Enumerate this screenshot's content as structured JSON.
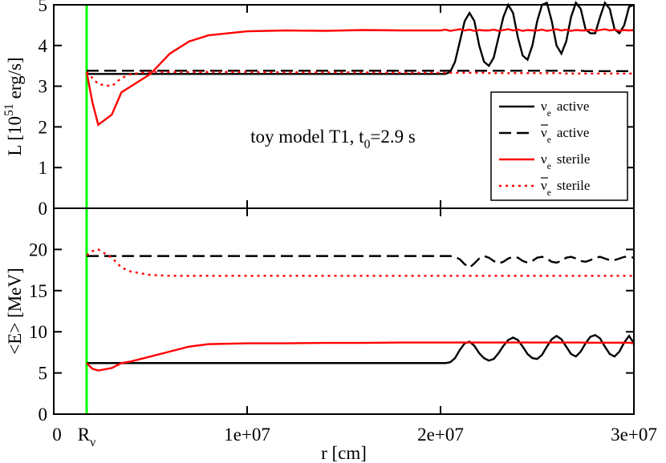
{
  "chart_data": [
    {
      "type": "line",
      "ylabel": "L [10",
      "ylabel_sup": "51",
      "ylabel_tail": "erg/s]",
      "annotation": {
        "text": "toy model T1, t",
        "sub": "0",
        "tail": "=2.9 s"
      },
      "x": [
        1700000,
        2000000,
        2300000,
        3000000,
        3500000,
        4000000,
        5000000,
        6000000,
        7000000,
        8000000,
        10000000,
        12000000,
        14000000,
        16000000,
        18000000,
        20000000,
        20250000,
        20500000,
        20750000,
        21000000,
        21250000,
        21500000,
        21750000,
        22000000,
        22250000,
        22500000,
        22750000,
        23000000,
        23250000,
        23500000,
        23750000,
        24000000,
        24250000,
        24500000,
        24750000,
        25000000,
        25250000,
        25500000,
        25750000,
        26000000,
        26250000,
        26500000,
        26750000,
        27000000,
        27250000,
        27500000,
        27750000,
        28000000,
        28250000,
        28500000,
        28750000,
        29000000,
        29250000,
        29500000,
        29750000,
        30000000
      ],
      "xlim": [
        0,
        30000000
      ],
      "xticks": [
        0,
        10000000,
        20000000,
        30000000
      ],
      "ylim": [
        0,
        5
      ],
      "yticks": [
        0,
        1,
        2,
        3,
        4,
        5
      ],
      "legend": "lower right",
      "marker_line": {
        "x": 1700000,
        "color": "#00ff00"
      },
      "series": [
        {
          "name": "ν",
          "name_sub": "e",
          "name_tail": "active",
          "overbar": false,
          "color": "#000000",
          "dash": "solid",
          "values": [
            3.3,
            3.3,
            3.3,
            3.3,
            3.3,
            3.3,
            3.3,
            3.3,
            3.3,
            3.3,
            3.3,
            3.3,
            3.3,
            3.3,
            3.3,
            3.3,
            3.3,
            3.35,
            3.6,
            4.1,
            4.6,
            4.8,
            4.6,
            4.0,
            3.6,
            3.5,
            3.7,
            4.2,
            4.7,
            5.0,
            4.8,
            4.2,
            3.75,
            3.65,
            4.0,
            4.6,
            5.0,
            5.05,
            4.6,
            4.0,
            3.8,
            4.1,
            4.7,
            5.05,
            4.9,
            4.4,
            4.3,
            4.3,
            4.7,
            5.05,
            4.9,
            4.4,
            4.3,
            4.5,
            4.95,
            5.0
          ]
        },
        {
          "name": "ν",
          "name_sub": "e",
          "name_tail": "active",
          "overbar": true,
          "color": "#000000",
          "dash": "dashed",
          "values": [
            3.38,
            3.38,
            3.38,
            3.38,
            3.38,
            3.38,
            3.38,
            3.38,
            3.38,
            3.38,
            3.38,
            3.38,
            3.38,
            3.38,
            3.38,
            3.38,
            3.38,
            3.38,
            3.38,
            3.38,
            3.38,
            3.38,
            3.38,
            3.38,
            3.38,
            3.38,
            3.38,
            3.38,
            3.38,
            3.38,
            3.38,
            3.38,
            3.38,
            3.38,
            3.38,
            3.38,
            3.38,
            3.38,
            3.38,
            3.38,
            3.38,
            3.38,
            3.38,
            3.38,
            3.38,
            3.37,
            3.37,
            3.37,
            3.37,
            3.37,
            3.37,
            3.37,
            3.37,
            3.37,
            3.37,
            3.37
          ]
        },
        {
          "name": "ν",
          "name_sub": "e",
          "name_tail": "sterile",
          "overbar": false,
          "color": "#ff0000",
          "dash": "solid",
          "values": [
            3.35,
            2.6,
            2.05,
            2.3,
            2.85,
            3.0,
            3.3,
            3.8,
            4.1,
            4.25,
            4.35,
            4.37,
            4.36,
            4.38,
            4.37,
            4.37,
            4.39,
            4.36,
            4.38,
            4.4,
            4.37,
            4.39,
            4.36,
            4.38,
            4.37,
            4.37,
            4.39,
            4.36,
            4.38,
            4.4,
            4.37,
            4.39,
            4.36,
            4.38,
            4.37,
            4.37,
            4.39,
            4.36,
            4.38,
            4.4,
            4.37,
            4.39,
            4.36,
            4.38,
            4.37,
            4.37,
            4.39,
            4.36,
            4.38,
            4.4,
            4.37,
            4.39,
            4.36,
            4.38,
            4.37,
            4.38
          ]
        },
        {
          "name": "ν",
          "name_sub": "e",
          "name_tail": "sterile",
          "overbar": true,
          "color": "#ff0000",
          "dash": "dotted",
          "values": [
            3.35,
            3.2,
            3.05,
            3.0,
            3.2,
            3.3,
            3.35,
            3.35,
            3.35,
            3.35,
            3.35,
            3.34,
            3.34,
            3.34,
            3.33,
            3.33,
            3.33,
            3.33,
            3.33,
            3.33,
            3.33,
            3.33,
            3.33,
            3.33,
            3.33,
            3.32,
            3.32,
            3.32,
            3.32,
            3.32,
            3.32,
            3.32,
            3.32,
            3.32,
            3.32,
            3.32,
            3.32,
            3.32,
            3.32,
            3.32,
            3.32,
            3.31,
            3.31,
            3.31,
            3.31,
            3.31,
            3.31,
            3.31,
            3.31,
            3.31,
            3.31,
            3.31,
            3.31,
            3.31,
            3.31,
            3.31
          ]
        }
      ]
    },
    {
      "type": "line",
      "ylabel": "<E> [MeV]",
      "xlabel": "r [cm]",
      "x": [
        1700000,
        2000000,
        2300000,
        3000000,
        3500000,
        4000000,
        5000000,
        6000000,
        7000000,
        8000000,
        10000000,
        12000000,
        14000000,
        16000000,
        18000000,
        20000000,
        20250000,
        20500000,
        20750000,
        21000000,
        21250000,
        21500000,
        21750000,
        22000000,
        22250000,
        22500000,
        22750000,
        23000000,
        23250000,
        23500000,
        23750000,
        24000000,
        24250000,
        24500000,
        24750000,
        25000000,
        25250000,
        25500000,
        25750000,
        26000000,
        26250000,
        26500000,
        26750000,
        27000000,
        27250000,
        27500000,
        27750000,
        28000000,
        28250000,
        28500000,
        28750000,
        29000000,
        29250000,
        29500000,
        29750000,
        30000000
      ],
      "xlim": [
        0,
        30000000
      ],
      "xticks": [
        0,
        {
          "value": 10000000,
          "label": "1e+07"
        },
        {
          "value": 20000000,
          "label": "2e+07"
        },
        {
          "value": 30000000,
          "label": "3e+07"
        }
      ],
      "ylim": [
        0,
        25
      ],
      "yticks": [
        0,
        5,
        10,
        15,
        20
      ],
      "marker_line": {
        "x": 1700000,
        "color": "#00ff00",
        "label": "R",
        "label_sub": "ν"
      },
      "series": [
        {
          "color": "#000000",
          "dash": "solid",
          "values": [
            6.2,
            6.2,
            6.2,
            6.2,
            6.2,
            6.2,
            6.2,
            6.2,
            6.2,
            6.2,
            6.2,
            6.2,
            6.2,
            6.2,
            6.2,
            6.2,
            6.2,
            6.3,
            6.8,
            7.8,
            8.6,
            8.8,
            8.3,
            7.4,
            6.8,
            6.5,
            6.7,
            7.4,
            8.3,
            9.0,
            9.3,
            9.0,
            8.2,
            7.3,
            6.8,
            6.7,
            7.2,
            8.2,
            9.1,
            9.5,
            9.1,
            8.2,
            7.3,
            7.0,
            7.6,
            8.6,
            9.4,
            9.6,
            9.2,
            8.2,
            7.3,
            7.0,
            7.6,
            8.7,
            9.5,
            8.6
          ]
        },
        {
          "color": "#000000",
          "dash": "dashed",
          "values": [
            19.2,
            19.2,
            19.2,
            19.2,
            19.2,
            19.2,
            19.2,
            19.2,
            19.2,
            19.2,
            19.2,
            19.2,
            19.2,
            19.2,
            19.2,
            19.2,
            19.2,
            19.2,
            19.1,
            18.8,
            18.2,
            17.8,
            18.3,
            18.9,
            19.2,
            19.0,
            18.6,
            18.3,
            18.5,
            18.9,
            19.1,
            19.0,
            18.6,
            18.4,
            18.6,
            19.0,
            19.1,
            18.9,
            18.5,
            18.4,
            18.6,
            19.0,
            19.1,
            18.9,
            18.6,
            18.5,
            18.7,
            19.0,
            19.1,
            18.9,
            18.7,
            18.7,
            18.9,
            19.1,
            19.1,
            19.0
          ]
        },
        {
          "color": "#ff0000",
          "dash": "solid",
          "values": [
            6.2,
            5.5,
            5.3,
            5.6,
            6.2,
            6.4,
            7.0,
            7.6,
            8.2,
            8.5,
            8.6,
            8.6,
            8.65,
            8.65,
            8.7,
            8.7,
            8.7,
            8.7,
            8.7,
            8.7,
            8.7,
            8.7,
            8.7,
            8.7,
            8.7,
            8.7,
            8.7,
            8.7,
            8.7,
            8.7,
            8.7,
            8.7,
            8.7,
            8.7,
            8.7,
            8.7,
            8.7,
            8.7,
            8.7,
            8.7,
            8.7,
            8.7,
            8.7,
            8.7,
            8.7,
            8.68,
            8.68,
            8.68,
            8.68,
            8.68,
            8.68,
            8.68,
            8.68,
            8.68,
            8.68,
            8.6
          ]
        },
        {
          "color": "#ff0000",
          "dash": "dotted",
          "values": [
            19.3,
            19.8,
            20.0,
            19.0,
            17.8,
            17.3,
            16.9,
            16.8,
            16.8,
            16.8,
            16.8,
            16.8,
            16.8,
            16.8,
            16.8,
            16.8,
            16.8,
            16.8,
            16.8,
            16.8,
            16.8,
            16.8,
            16.8,
            16.8,
            16.8,
            16.8,
            16.8,
            16.8,
            16.8,
            16.8,
            16.8,
            16.8,
            16.8,
            16.8,
            16.8,
            16.8,
            16.8,
            16.8,
            16.8,
            16.8,
            16.8,
            16.8,
            16.8,
            16.8,
            16.8,
            16.8,
            16.8,
            16.8,
            16.8,
            16.8,
            16.8,
            16.8,
            16.8,
            16.8,
            16.8,
            16.8
          ]
        }
      ]
    }
  ]
}
